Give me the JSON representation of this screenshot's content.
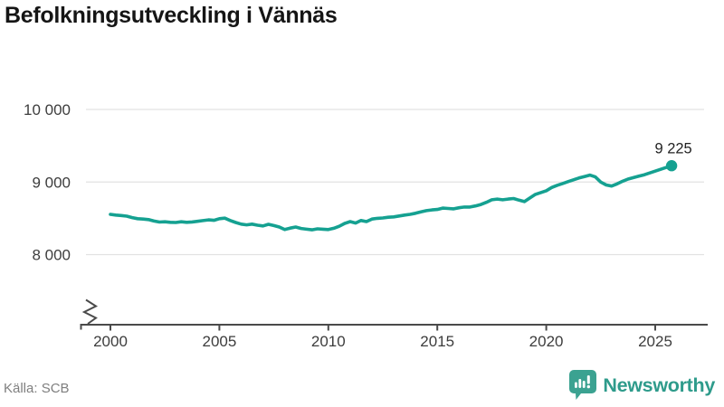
{
  "title": "Befolkningsutveckling i Vännäs",
  "source": "Källa: SCB",
  "branding": {
    "name": "Newsworthy",
    "icon": "bar-chart-speech-bubble-icon"
  },
  "colors": {
    "line": "#15a191",
    "latest_point": "#15a191",
    "brand_icon": "#3ba291",
    "brand_text": "#2e9b8b",
    "grid": "#e2e2e2",
    "axis": "#4a4a4a",
    "title_text": "#151515",
    "tick_text": "#3d3d3d",
    "source_text": "#7f7f7f"
  },
  "annotation": {
    "latest_label": "9 225",
    "latest_value": 9225
  },
  "chart_data": {
    "type": "line",
    "title": "Befolkningsutveckling i Vännäs",
    "xlabel": "",
    "ylabel": "",
    "legend": "none",
    "grid": "horizontal-only",
    "axis_break_bottom_left": true,
    "x_start": 2000,
    "x_step": 0.25,
    "x_range": [
      2000,
      2025.75
    ],
    "ylim": [
      7750,
      10150
    ],
    "y_ticks": [
      {
        "value": 8000,
        "label": "8 000"
      },
      {
        "value": 9000,
        "label": "9 000"
      },
      {
        "value": 10000,
        "label": "10 000"
      }
    ],
    "x_ticks": [
      {
        "value": 2000,
        "label": "2000"
      },
      {
        "value": 2005,
        "label": "2005"
      },
      {
        "value": 2010,
        "label": "2010"
      },
      {
        "value": 2015,
        "label": "2015"
      },
      {
        "value": 2020,
        "label": "2020"
      },
      {
        "value": 2025,
        "label": "2025"
      }
    ],
    "values": [
      8555,
      8545,
      8538,
      8530,
      8510,
      8495,
      8490,
      8482,
      8462,
      8448,
      8452,
      8445,
      8442,
      8452,
      8445,
      8450,
      8458,
      8468,
      8478,
      8472,
      8495,
      8502,
      8470,
      8442,
      8420,
      8410,
      8420,
      8405,
      8395,
      8418,
      8400,
      8380,
      8345,
      8365,
      8380,
      8360,
      8350,
      8342,
      8355,
      8350,
      8345,
      8362,
      8390,
      8430,
      8455,
      8435,
      8470,
      8455,
      8490,
      8500,
      8505,
      8515,
      8520,
      8532,
      8545,
      8555,
      8570,
      8590,
      8605,
      8615,
      8622,
      8640,
      8635,
      8630,
      8645,
      8655,
      8655,
      8670,
      8690,
      8720,
      8755,
      8765,
      8755,
      8765,
      8772,
      8750,
      8730,
      8780,
      8830,
      8855,
      8880,
      8925,
      8955,
      8980,
      9005,
      9030,
      9055,
      9075,
      9095,
      9070,
      9000,
      8960,
      8945,
      8975,
      9010,
      9040,
      9060,
      9080,
      9100,
      9125,
      9150,
      9175,
      9200,
      9225
    ]
  }
}
